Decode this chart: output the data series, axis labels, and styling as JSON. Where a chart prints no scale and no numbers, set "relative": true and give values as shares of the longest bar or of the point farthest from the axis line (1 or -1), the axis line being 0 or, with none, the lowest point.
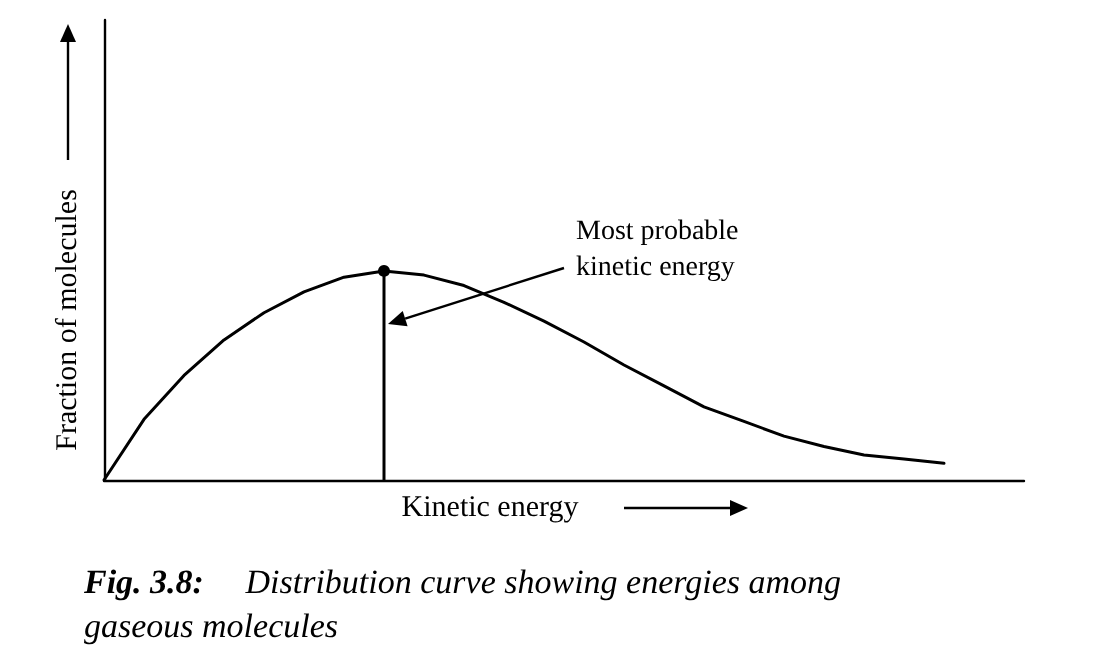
{
  "chart_data": {
    "type": "line",
    "relative": true,
    "title": "Fig. 3.8: Distribution curve showing energies among gaseous molecules",
    "xlabel": "Kinetic energy",
    "ylabel": "Fraction of molecules",
    "annotations": [
      "Most probable kinetic energy"
    ],
    "categories": [
      null,
      null,
      null,
      null,
      null,
      null,
      null,
      null,
      null,
      null,
      null,
      null,
      null,
      null,
      null,
      null,
      null,
      null,
      null,
      null,
      null,
      null,
      null,
      null
    ],
    "series": [
      {
        "color": "#000000",
        "values": [
          0,
          0.29,
          0.5,
          0.67,
          0.8,
          0.9,
          0.97,
          1,
          0.98,
          0.93,
          0.85,
          0.76,
          0.66,
          0.55,
          0.45,
          0.35,
          0.28,
          0.21,
          0.16,
          0.12,
          0.1,
          0.08,
          null,
          null
        ]
      }
    ],
    "grid": false,
    "marker": "none",
    "line_style": "solid"
  }
}
